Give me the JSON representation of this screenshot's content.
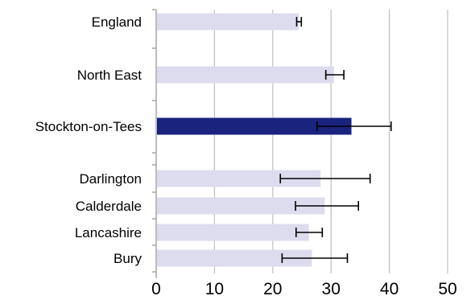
{
  "chart_data": {
    "type": "bar",
    "orientation": "horizontal",
    "categories": [
      "England",
      "North East",
      "Stockton-on-Tees",
      "Darlington",
      "Calderdale",
      "Lancashire",
      "Bury"
    ],
    "values": [
      24.5,
      30.5,
      33.5,
      28.2,
      28.9,
      26.2,
      26.7
    ],
    "error_low": [
      24.1,
      29.1,
      27.6,
      21.3,
      23.9,
      24.0,
      21.6
    ],
    "error_high": [
      24.9,
      32.2,
      40.3,
      36.7,
      34.7,
      28.5,
      32.8
    ],
    "highlight_index": 2,
    "xlim": [
      0,
      55
    ],
    "x_ticks": [
      "0",
      "10",
      "20",
      "30",
      "40",
      "50"
    ],
    "grid": true,
    "colors": {
      "bar": "#dcdcee",
      "highlight": "#1a237e",
      "gridline": "#c0c0c0",
      "axis": "#a6a6a6",
      "error_bar": "#000000"
    }
  }
}
